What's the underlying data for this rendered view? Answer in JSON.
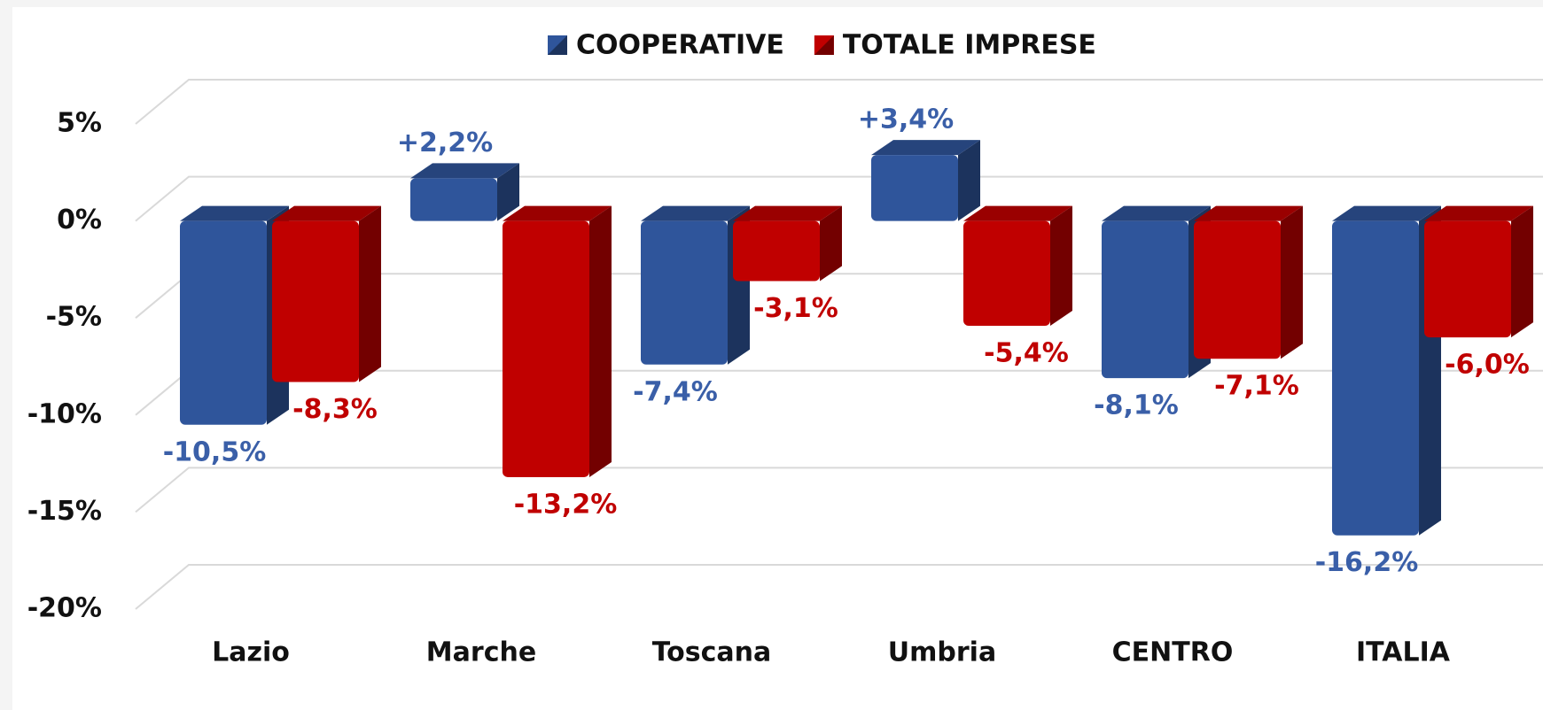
{
  "chart_data": {
    "type": "bar3d",
    "categories": [
      "Lazio",
      "Marche",
      "Toscana",
      "Umbria",
      "CENTRO",
      "ITALIA"
    ],
    "series": [
      {
        "name": "COOPERATIVE",
        "color": "#2f559b",
        "label_color": "#3a5fa8",
        "values": [
          -10.5,
          2.2,
          -7.4,
          3.4,
          -8.1,
          -16.2
        ],
        "value_labels": [
          "-10,5%",
          "+2,2%",
          "-7,4%",
          "+3,4%",
          "-8,1%",
          "-16,2%"
        ]
      },
      {
        "name": "TOTALE IMPRESE",
        "color": "#c00000",
        "label_color": "#c00000",
        "values": [
          -8.3,
          -13.2,
          -3.1,
          -5.4,
          -7.1,
          -6.0
        ],
        "value_labels": [
          "-8,3%",
          "-13,2%",
          "-3,1%",
          "-5,4%",
          "-7,1%",
          "-6,0%"
        ]
      }
    ],
    "ylim": [
      -20,
      5
    ],
    "yticks": [
      {
        "value": 5,
        "label": "5%"
      },
      {
        "value": 0,
        "label": "0%"
      },
      {
        "value": -5,
        "label": "-5%"
      },
      {
        "value": -10,
        "label": "-10%"
      },
      {
        "value": -15,
        "label": "-15%"
      },
      {
        "value": -20,
        "label": "-20%"
      }
    ],
    "grid": true,
    "legend": "top"
  }
}
